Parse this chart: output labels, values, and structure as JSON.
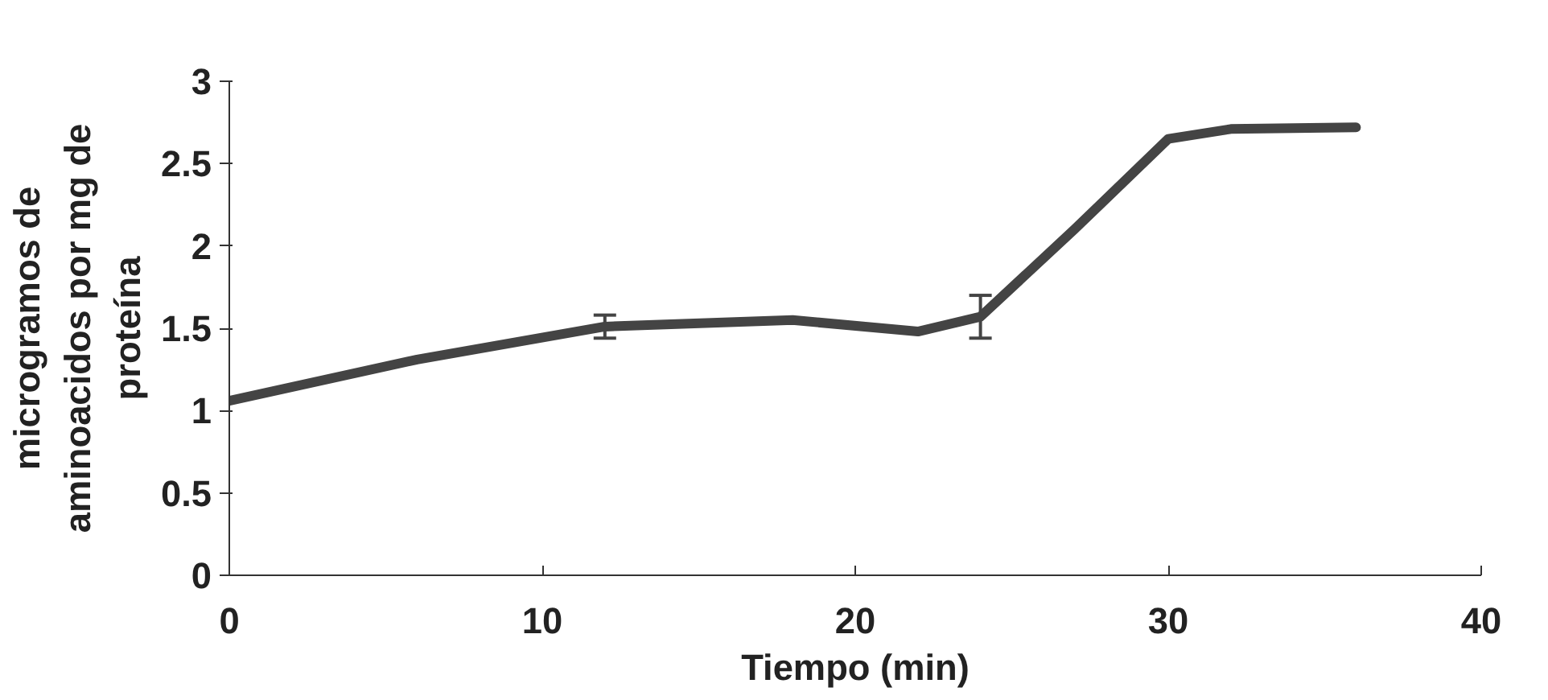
{
  "chart_data": {
    "type": "line",
    "xlabel": "Tiempo (min)",
    "ylabel": "microgramos de\naminoacidos por mg de\nproteína",
    "x": [
      0,
      6,
      12,
      18,
      22,
      24,
      27,
      30,
      32,
      36
    ],
    "series": [
      {
        "color": "#444444",
        "values": [
          1.06,
          1.31,
          1.51,
          1.55,
          1.48,
          1.57,
          2.1,
          2.65,
          2.71,
          2.72
        ],
        "errors": [
          null,
          null,
          0.07,
          null,
          null,
          0.13,
          null,
          null,
          null,
          null
        ]
      }
    ],
    "xlim": [
      0,
      40
    ],
    "xticks": [
      0,
      10,
      20,
      30,
      40
    ],
    "ylim": [
      0,
      3
    ],
    "yticks": [
      0,
      0.5,
      1,
      1.5,
      2,
      2.5,
      3
    ],
    "grid": false,
    "marker": "none",
    "line_style": "solid"
  }
}
